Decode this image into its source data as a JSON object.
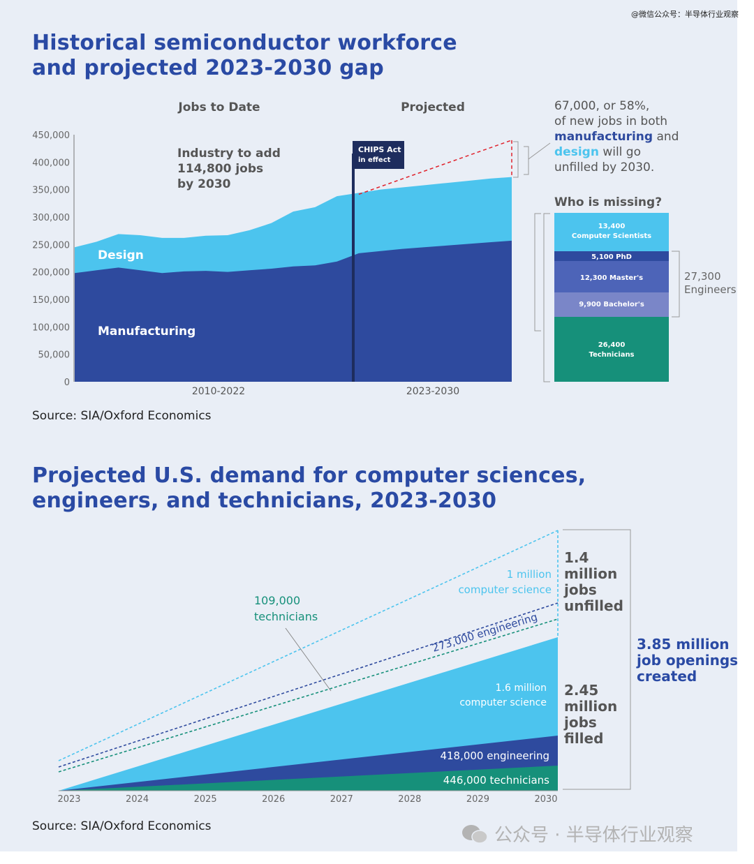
{
  "watermark_top": "@微信公众号：半导体行业观察",
  "watermark_bottom": "公众号 · 半导体行业观察",
  "colors": {
    "title_blue": "#2a4aa4",
    "manufacturing": "#2e4a9e",
    "design": "#4cc4ee",
    "technicians": "#16907a",
    "masters": "#4d64b8",
    "bachelors": "#7a86c8",
    "phd": "#2e4a9e",
    "red_dash": "#e0202a"
  },
  "chart1": {
    "title_line1": "Historical semiconductor workforce",
    "title_line2": "and projected 2023-2030 gap",
    "header_left": "Jobs to Date",
    "header_right": "Projected",
    "annotation_lines": [
      "Industry to add",
      "114,800 jobs",
      "by 2030"
    ],
    "chips_line1": "CHIPS Act",
    "chips_line2": "in effect",
    "design_label": "Design",
    "manufacturing_label": "Manufacturing",
    "xlabel_left": "2010-2022",
    "xlabel_right": "2023-2030",
    "gap_text": {
      "line1": "67,000, or 58%,",
      "line2": "of new jobs in both",
      "manufacturing": "manufacturing",
      "and": " and",
      "design": "design",
      "will_go": " will go",
      "line5": "unfilled by 2030."
    },
    "who_missing": "Who is missing?",
    "missing_blocks": [
      {
        "line1": "13,400",
        "line2": "Computer Scientists",
        "value": 13400
      },
      {
        "line1": "5,100 PhD",
        "line2": "",
        "value": 5100
      },
      {
        "line1": "12,300 Master's",
        "line2": "",
        "value": 12300
      },
      {
        "line1": "9,900 Bachelor's",
        "line2": "",
        "value": 9900
      },
      {
        "line1": "26,400",
        "line2": "Technicians",
        "value": 26400
      }
    ],
    "engineers_line1": "27,300",
    "engineers_line2": "Engineers",
    "source": "Source: SIA/Oxford Economics"
  },
  "chart2": {
    "title_line1": "Projected U.S. demand for computer sciences,",
    "title_line2": "engineers, and technicians, 2023-2030",
    "label_cs_unfilled_1": "1 million",
    "label_cs_unfilled_2": "computer science",
    "label_eng_unfilled": "273,000 engineering",
    "label_tech_unfilled_1": "109,000",
    "label_tech_unfilled_2": "technicians",
    "label_cs_filled_1": "1.6 million",
    "label_cs_filled_2": "computer science",
    "label_eng_filled": "418,000 engineering",
    "label_tech_filled": "446,000 technicians",
    "unfilled_lines": [
      "1.4",
      "million",
      "jobs",
      "unfilled"
    ],
    "filled_lines": [
      "2.45",
      "million",
      "jobs",
      "filled"
    ],
    "total_lines": [
      "3.85 million",
      "job openings",
      "created"
    ],
    "source": "Source: SIA/Oxford Economics"
  },
  "chart_data": [
    {
      "type": "area",
      "title": "Historical semiconductor workforce and projected 2023-2030 gap",
      "ylim": [
        0,
        450000
      ],
      "yticks": [
        "450,000",
        "400,000",
        "350,000",
        "300,000",
        "250,000",
        "200,000",
        "150,000",
        "100,000",
        "50,000",
        "0"
      ],
      "ytick_values": [
        450000,
        400000,
        350000,
        300000,
        250000,
        200000,
        150000,
        100000,
        50000,
        0
      ],
      "x": [
        2010,
        2011,
        2012,
        2013,
        2014,
        2015,
        2016,
        2017,
        2018,
        2019,
        2020,
        2021,
        2022,
        2023,
        2024,
        2025,
        2026,
        2027,
        2028,
        2029,
        2030
      ],
      "series": [
        {
          "name": "Manufacturing",
          "values": [
            198000,
            203000,
            208000,
            203000,
            198000,
            201000,
            202000,
            200000,
            203000,
            206000,
            210000,
            212000,
            219000,
            234000,
            238000,
            242000,
            245000,
            248000,
            251000,
            254000,
            257000
          ]
        },
        {
          "name": "Design",
          "values": [
            245000,
            255000,
            269000,
            267000,
            262000,
            262000,
            266000,
            267000,
            276000,
            289000,
            310000,
            318000,
            338000,
            344000,
            350000,
            354000,
            358000,
            362000,
            366000,
            370000,
            373000
          ]
        }
      ],
      "projected_demand_2030": 440000
    },
    {
      "type": "area",
      "title": "Projected U.S. demand for computer sciences, engineers, and technicians, 2023-2030",
      "x": [
        2023,
        2024,
        2025,
        2026,
        2027,
        2028,
        2029,
        2030
      ],
      "filled_2030": {
        "technicians": 446000,
        "engineering": 418000,
        "computer science": 1600000
      },
      "unfilled_2030": {
        "technicians": 109000,
        "engineering": 273000,
        "computer science": 1000000
      }
    }
  ]
}
